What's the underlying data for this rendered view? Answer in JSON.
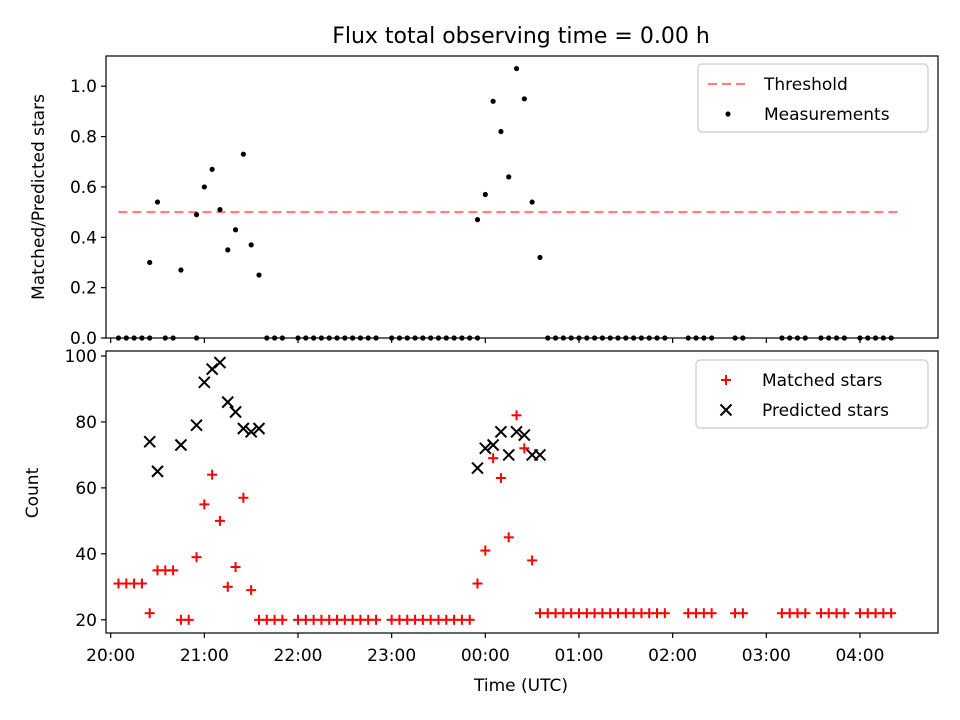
{
  "figure": {
    "title": "Flux total observing time = 0.00 h"
  },
  "colors": {
    "threshold": "#ff8080",
    "measurement": "#000000",
    "matched": "#ff0000",
    "predicted": "#000000"
  },
  "chart_data": [
    {
      "type": "scatter",
      "ylabel": "Matched/Predicted stars",
      "ylim": [
        0,
        1.12
      ],
      "xlim": [
        "19:57",
        "04:50"
      ],
      "yticks": [
        "0.0",
        "0.2",
        "0.4",
        "0.6",
        "0.8",
        "1.0"
      ],
      "threshold": {
        "name": "Threshold",
        "value": 0.5,
        "x_range": [
          "20:05",
          "04:25"
        ]
      },
      "legend": {
        "position": "top-right",
        "entries": [
          "Threshold",
          "Measurements"
        ]
      },
      "series": [
        {
          "name": "Measurements",
          "points": [
            [
              "20:05",
              0
            ],
            [
              "20:10",
              0
            ],
            [
              "20:15",
              0
            ],
            [
              "20:20",
              0
            ],
            [
              "20:25",
              0
            ],
            [
              "20:35",
              0
            ],
            [
              "20:40",
              0
            ],
            [
              "20:55",
              0
            ],
            [
              "20:25",
              0.3
            ],
            [
              "20:30",
              0.54
            ],
            [
              "20:45",
              0.27
            ],
            [
              "20:55",
              0.49
            ],
            [
              "21:00",
              0.6
            ],
            [
              "21:05",
              0.67
            ],
            [
              "21:10",
              0.51
            ],
            [
              "21:15",
              0.35
            ],
            [
              "21:20",
              0.43
            ],
            [
              "21:25",
              0.73
            ],
            [
              "21:30",
              0.37
            ],
            [
              "21:35",
              0.25
            ],
            [
              "21:40",
              0
            ],
            [
              "21:45",
              0
            ],
            [
              "21:50",
              0
            ],
            [
              "22:00",
              0
            ],
            [
              "22:05",
              0
            ],
            [
              "22:10",
              0
            ],
            [
              "22:15",
              0
            ],
            [
              "22:20",
              0
            ],
            [
              "22:25",
              0
            ],
            [
              "22:30",
              0
            ],
            [
              "22:35",
              0
            ],
            [
              "22:40",
              0
            ],
            [
              "22:45",
              0
            ],
            [
              "22:50",
              0
            ],
            [
              "23:00",
              0
            ],
            [
              "23:05",
              0
            ],
            [
              "23:10",
              0
            ],
            [
              "23:15",
              0
            ],
            [
              "23:20",
              0
            ],
            [
              "23:25",
              0
            ],
            [
              "23:30",
              0
            ],
            [
              "23:35",
              0
            ],
            [
              "23:40",
              0
            ],
            [
              "23:45",
              0
            ],
            [
              "23:50",
              0
            ],
            [
              "23:55",
              0
            ],
            [
              "23:55",
              0.47
            ],
            [
              "00:00",
              0.57
            ],
            [
              "00:05",
              0.94
            ],
            [
              "00:10",
              0.82
            ],
            [
              "00:15",
              0.64
            ],
            [
              "00:20",
              1.07
            ],
            [
              "00:25",
              0.95
            ],
            [
              "00:30",
              0.54
            ],
            [
              "00:35",
              0.32
            ],
            [
              "00:40",
              0
            ],
            [
              "00:45",
              0
            ],
            [
              "00:50",
              0
            ],
            [
              "00:55",
              0
            ],
            [
              "01:00",
              0
            ],
            [
              "01:05",
              0
            ],
            [
              "01:10",
              0
            ],
            [
              "01:15",
              0
            ],
            [
              "01:20",
              0
            ],
            [
              "01:25",
              0
            ],
            [
              "01:30",
              0
            ],
            [
              "01:35",
              0
            ],
            [
              "01:40",
              0
            ],
            [
              "01:45",
              0
            ],
            [
              "01:50",
              0
            ],
            [
              "01:55",
              0
            ],
            [
              "02:10",
              0
            ],
            [
              "02:15",
              0
            ],
            [
              "02:20",
              0
            ],
            [
              "02:25",
              0
            ],
            [
              "02:40",
              0
            ],
            [
              "02:45",
              0
            ],
            [
              "03:10",
              0
            ],
            [
              "03:15",
              0
            ],
            [
              "03:20",
              0
            ],
            [
              "03:25",
              0
            ],
            [
              "03:35",
              0
            ],
            [
              "03:40",
              0
            ],
            [
              "03:45",
              0
            ],
            [
              "03:50",
              0
            ],
            [
              "04:00",
              0
            ],
            [
              "04:05",
              0
            ],
            [
              "04:10",
              0
            ],
            [
              "04:15",
              0
            ],
            [
              "04:20",
              0
            ]
          ]
        }
      ]
    },
    {
      "type": "scatter",
      "xlabel": "Time (UTC)",
      "ylabel": "Count",
      "ylim": [
        16,
        101.5
      ],
      "xlim": [
        "19:57",
        "04:50"
      ],
      "xticks": [
        "20:00",
        "21:00",
        "22:00",
        "23:00",
        "00:00",
        "01:00",
        "02:00",
        "03:00",
        "04:00"
      ],
      "yticks": [
        "20",
        "40",
        "60",
        "80",
        "100"
      ],
      "legend": {
        "position": "top-right",
        "entries": [
          "Matched stars",
          "Predicted stars"
        ]
      },
      "series": [
        {
          "name": "Matched stars",
          "points": [
            [
              "20:05",
              31
            ],
            [
              "20:10",
              31
            ],
            [
              "20:15",
              31
            ],
            [
              "20:20",
              31
            ],
            [
              "20:25",
              22
            ],
            [
              "20:30",
              35
            ],
            [
              "20:35",
              35
            ],
            [
              "20:40",
              35
            ],
            [
              "20:45",
              20
            ],
            [
              "20:50",
              20
            ],
            [
              "20:55",
              39
            ],
            [
              "21:00",
              55
            ],
            [
              "21:05",
              64
            ],
            [
              "21:10",
              50
            ],
            [
              "21:15",
              30
            ],
            [
              "21:20",
              36
            ],
            [
              "21:25",
              57
            ],
            [
              "21:30",
              29
            ],
            [
              "21:35",
              20
            ],
            [
              "21:40",
              20
            ],
            [
              "21:45",
              20
            ],
            [
              "21:50",
              20
            ],
            [
              "22:00",
              20
            ],
            [
              "22:05",
              20
            ],
            [
              "22:10",
              20
            ],
            [
              "22:15",
              20
            ],
            [
              "22:20",
              20
            ],
            [
              "22:25",
              20
            ],
            [
              "22:30",
              20
            ],
            [
              "22:35",
              20
            ],
            [
              "22:40",
              20
            ],
            [
              "22:45",
              20
            ],
            [
              "22:50",
              20
            ],
            [
              "23:00",
              20
            ],
            [
              "23:05",
              20
            ],
            [
              "23:10",
              20
            ],
            [
              "23:15",
              20
            ],
            [
              "23:20",
              20
            ],
            [
              "23:25",
              20
            ],
            [
              "23:30",
              20
            ],
            [
              "23:35",
              20
            ],
            [
              "23:40",
              20
            ],
            [
              "23:45",
              20
            ],
            [
              "23:50",
              20
            ],
            [
              "23:55",
              31
            ],
            [
              "00:00",
              41
            ],
            [
              "00:05",
              69
            ],
            [
              "00:10",
              63
            ],
            [
              "00:15",
              45
            ],
            [
              "00:20",
              82
            ],
            [
              "00:25",
              72
            ],
            [
              "00:30",
              38
            ],
            [
              "00:35",
              22
            ],
            [
              "00:40",
              22
            ],
            [
              "00:45",
              22
            ],
            [
              "00:50",
              22
            ],
            [
              "00:55",
              22
            ],
            [
              "01:00",
              22
            ],
            [
              "01:05",
              22
            ],
            [
              "01:10",
              22
            ],
            [
              "01:15",
              22
            ],
            [
              "01:20",
              22
            ],
            [
              "01:25",
              22
            ],
            [
              "01:30",
              22
            ],
            [
              "01:35",
              22
            ],
            [
              "01:40",
              22
            ],
            [
              "01:45",
              22
            ],
            [
              "01:50",
              22
            ],
            [
              "01:55",
              22
            ],
            [
              "02:10",
              22
            ],
            [
              "02:15",
              22
            ],
            [
              "02:20",
              22
            ],
            [
              "02:25",
              22
            ],
            [
              "02:40",
              22
            ],
            [
              "02:45",
              22
            ],
            [
              "03:10",
              22
            ],
            [
              "03:15",
              22
            ],
            [
              "03:20",
              22
            ],
            [
              "03:25",
              22
            ],
            [
              "03:35",
              22
            ],
            [
              "03:40",
              22
            ],
            [
              "03:45",
              22
            ],
            [
              "03:50",
              22
            ],
            [
              "04:00",
              22
            ],
            [
              "04:05",
              22
            ],
            [
              "04:10",
              22
            ],
            [
              "04:15",
              22
            ],
            [
              "04:20",
              22
            ]
          ]
        },
        {
          "name": "Predicted stars",
          "points": [
            [
              "20:25",
              74
            ],
            [
              "20:30",
              65
            ],
            [
              "20:45",
              73
            ],
            [
              "20:55",
              79
            ],
            [
              "21:00",
              92
            ],
            [
              "21:05",
              96
            ],
            [
              "21:10",
              98
            ],
            [
              "21:15",
              86
            ],
            [
              "21:20",
              83
            ],
            [
              "21:25",
              78
            ],
            [
              "21:30",
              77
            ],
            [
              "21:35",
              78
            ],
            [
              "23:55",
              66
            ],
            [
              "00:00",
              72
            ],
            [
              "00:05",
              73
            ],
            [
              "00:10",
              77
            ],
            [
              "00:15",
              70
            ],
            [
              "00:20",
              77
            ],
            [
              "00:25",
              76
            ],
            [
              "00:30",
              70
            ],
            [
              "00:35",
              70
            ]
          ]
        }
      ]
    }
  ]
}
